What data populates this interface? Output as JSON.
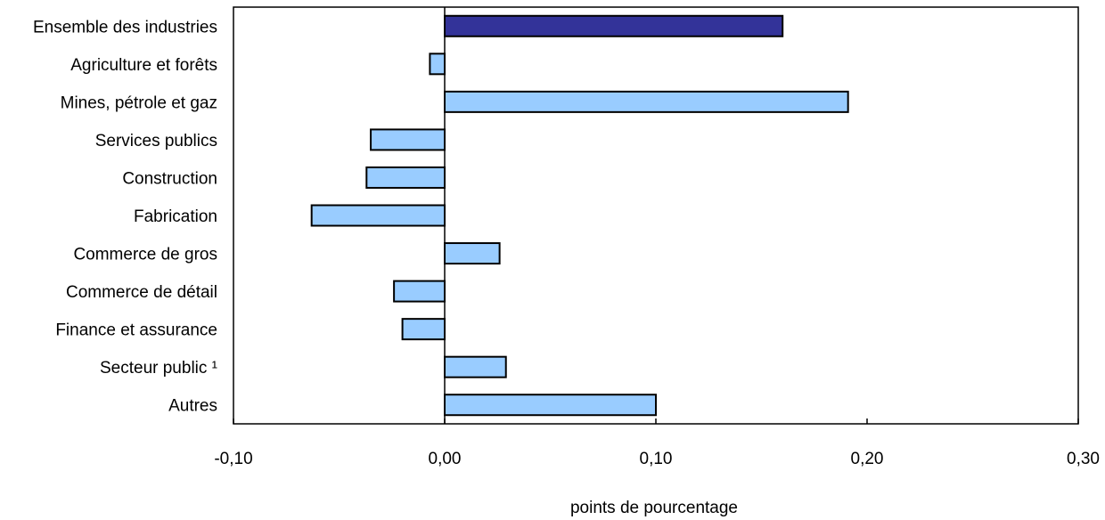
{
  "chart_data": {
    "type": "bar",
    "orientation": "horizontal",
    "categories": [
      "Ensemble des industries",
      "Agriculture et forêts",
      "Mines, pétrole et gaz",
      "Services publics",
      "Construction",
      "Fabrication",
      "Commerce de gros",
      "Commerce de détail",
      "Finance et assurance",
      "Secteur public ¹",
      "Autres"
    ],
    "values": [
      0.16,
      -0.007,
      0.191,
      -0.035,
      -0.037,
      -0.063,
      0.026,
      -0.024,
      -0.02,
      0.029,
      0.1
    ],
    "bar_colors": [
      "#333399",
      "#99ccff",
      "#99ccff",
      "#99ccff",
      "#99ccff",
      "#99ccff",
      "#99ccff",
      "#99ccff",
      "#99ccff",
      "#99ccff",
      "#99ccff"
    ],
    "xlabel": "points de pourcentage",
    "ylabel": "",
    "title": "",
    "xlim": [
      -0.1,
      0.3
    ],
    "xticks": [
      -0.1,
      0.0,
      0.1,
      0.2,
      0.3
    ],
    "xtick_labels": [
      "-0,10",
      "0,00",
      "0,10",
      "0,20",
      "0,30"
    ],
    "grid": false,
    "legend": "none"
  }
}
